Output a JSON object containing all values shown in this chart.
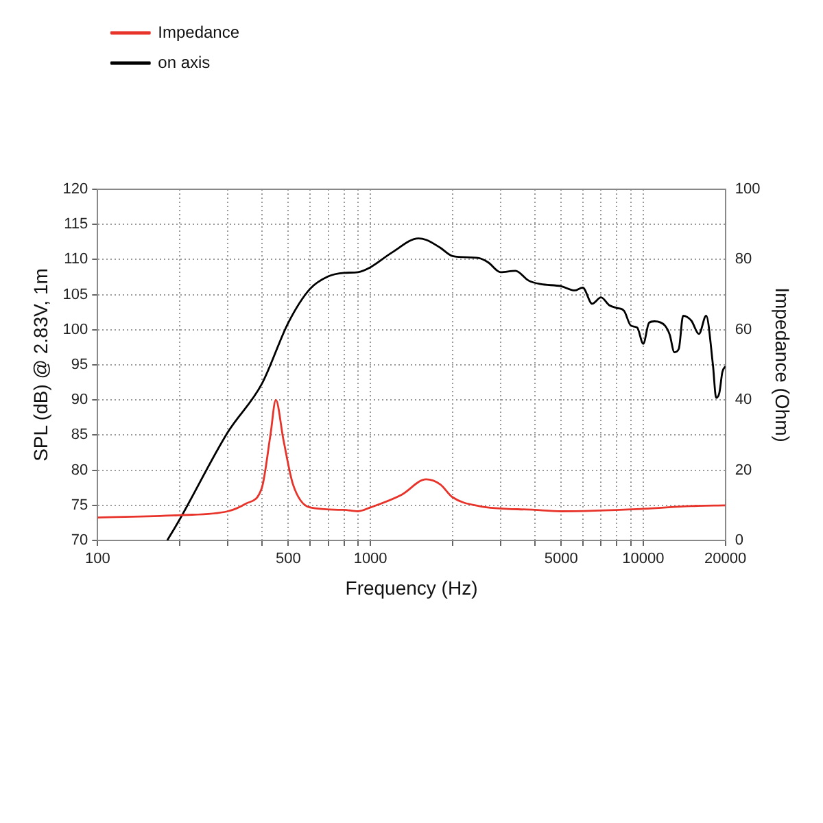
{
  "chart_data": {
    "type": "line",
    "xlabel": "Frequency (Hz)",
    "ylabel": "SPL (dB) @ 2.83V, 1m",
    "y2label": "Impedance (Ohm)",
    "log": "x",
    "grid": true,
    "legend": "top left",
    "marker": "none",
    "line_style": "solid",
    "xlim": [
      100,
      20000
    ],
    "ylim": [
      70,
      120
    ],
    "y2lim": [
      0,
      100
    ],
    "xticks": [
      100,
      {
        "value": 200,
        "label": null
      },
      {
        "value": 300,
        "label": null
      },
      {
        "value": 400,
        "label": null
      },
      500,
      {
        "value": 600,
        "label": null
      },
      {
        "value": 700,
        "label": null
      },
      {
        "value": 800,
        "label": null
      },
      {
        "value": 900,
        "label": null
      },
      1000,
      {
        "value": 2000,
        "label": null
      },
      {
        "value": 3000,
        "label": null
      },
      {
        "value": 4000,
        "label": null
      },
      5000,
      {
        "value": 6000,
        "label": null
      },
      {
        "value": 7000,
        "label": null
      },
      {
        "value": 8000,
        "label": null
      },
      {
        "value": 9000,
        "label": null
      },
      10000,
      20000
    ],
    "yticks": [
      70,
      75,
      80,
      85,
      90,
      95,
      100,
      105,
      110,
      115,
      120
    ],
    "y2ticks": [
      0,
      20,
      40,
      60,
      80,
      100
    ],
    "series": [
      {
        "name": "Impedance",
        "color": "#e8332a",
        "axis": "y2",
        "x": [
          100,
          200,
          300,
          350,
          400,
          430,
          450,
          480,
          520,
          600,
          800,
          900,
          1000,
          1300,
          1600,
          1800,
          2000,
          2500,
          4000,
          5000,
          10000,
          15000,
          20000
        ],
        "values": [
          6.5,
          7.2,
          8.3,
          10.5,
          15,
          30,
          40,
          28.6,
          16,
          9.4,
          8.7,
          8.3,
          9.4,
          13,
          17.4,
          16,
          12.3,
          9.8,
          8.7,
          8.3,
          9,
          9.8,
          10
        ]
      },
      {
        "name": "on axis",
        "color": "#000000",
        "x": [
          180,
          200,
          300,
          400,
          500,
          600,
          700,
          800,
          900,
          1000,
          1200,
          1500,
          1600,
          1800,
          2000,
          2500,
          2700,
          3000,
          3400,
          3800,
          4200,
          5000,
          5600,
          6000,
          6500,
          7000,
          7500,
          8000,
          8500,
          9000,
          9500,
          10000,
          10500,
          11000,
          12000,
          12500,
          13000,
          13500,
          14000,
          15000,
          16000,
          17000,
          18000,
          18500,
          19000,
          19500,
          20000
        ],
        "values": [
          70,
          73,
          85.4,
          92.3,
          101,
          105.8,
          107.6,
          108.1,
          108.2,
          108.9,
          111,
          113,
          112.8,
          111.7,
          110.5,
          110.2,
          109.6,
          108.2,
          108.4,
          107,
          106.5,
          106.2,
          105.6,
          106,
          103.7,
          104.6,
          103.5,
          103.1,
          102.7,
          100.6,
          100.3,
          98,
          101,
          101.2,
          100.6,
          99.3,
          96.8,
          97.3,
          102,
          101.3,
          99.4,
          102,
          95,
          90.3,
          91,
          94,
          94.8
        ]
      }
    ]
  }
}
